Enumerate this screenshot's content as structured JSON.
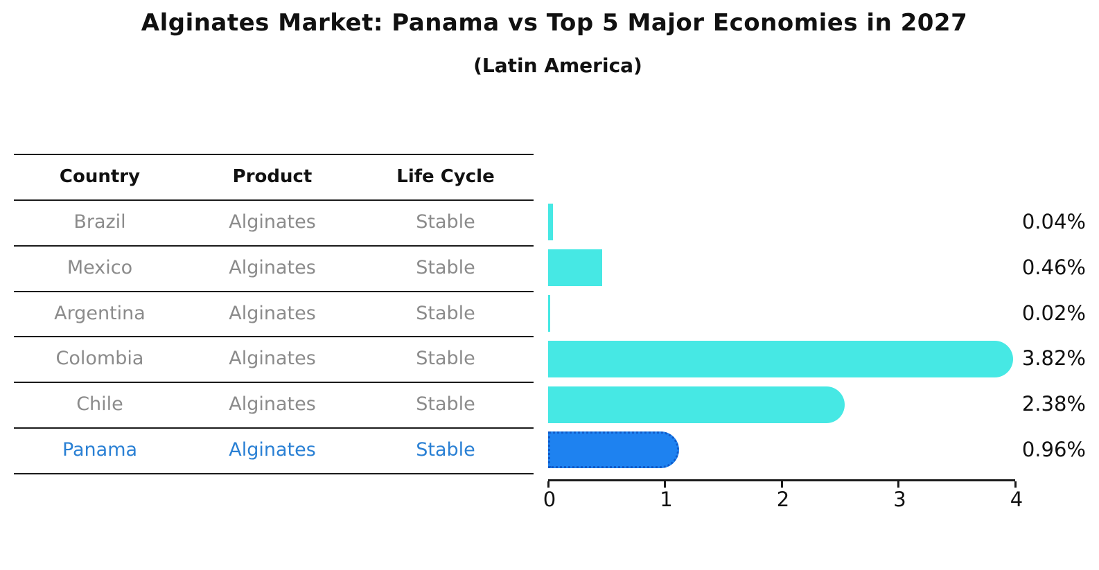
{
  "title": "Alginates Market: Panama vs Top 5 Major Economies in 2027",
  "subtitle": "(Latin America)",
  "table": {
    "headers": [
      "Country",
      "Product",
      "Life Cycle"
    ],
    "rows": [
      {
        "country": "Brazil",
        "product": "Alginates",
        "life_cycle": "Stable"
      },
      {
        "country": "Mexico",
        "product": "Alginates",
        "life_cycle": "Stable"
      },
      {
        "country": "Argentina",
        "product": "Alginates",
        "life_cycle": "Stable"
      },
      {
        "country": "Colombia",
        "product": "Alginates",
        "life_cycle": "Stable"
      },
      {
        "country": "Chile",
        "product": "Alginates",
        "life_cycle": "Stable"
      },
      {
        "country": "Panama",
        "product": "Alginates",
        "life_cycle": "Stable"
      }
    ]
  },
  "chart_data": {
    "type": "bar",
    "orientation": "horizontal",
    "title": "Alginates Market: Panama vs Top 5 Major Economies in 2027",
    "subtitle": "(Latin America)",
    "categories": [
      "Brazil",
      "Mexico",
      "Argentina",
      "Colombia",
      "Chile",
      "Panama"
    ],
    "values": [
      0.04,
      0.46,
      0.02,
      3.82,
      2.38,
      0.96
    ],
    "value_labels": [
      "0.04%",
      "0.46%",
      "0.02%",
      "3.82%",
      "2.38%",
      "0.96%"
    ],
    "highlight_category": "Panama",
    "xlabel": "",
    "ylabel": "",
    "xlim": [
      0,
      4
    ],
    "xticks": [
      0,
      1,
      2,
      3,
      4
    ],
    "grid": false,
    "legend": false,
    "colors": {
      "default_bar": "#46e8e4",
      "highlight_bar": "#1e82f0",
      "highlight_border": "#0f5ac8",
      "highlight_text": "#2a80d4",
      "muted_text": "#8b8b8b",
      "label_text": "#111111",
      "line": "#1a1a1a"
    }
  }
}
